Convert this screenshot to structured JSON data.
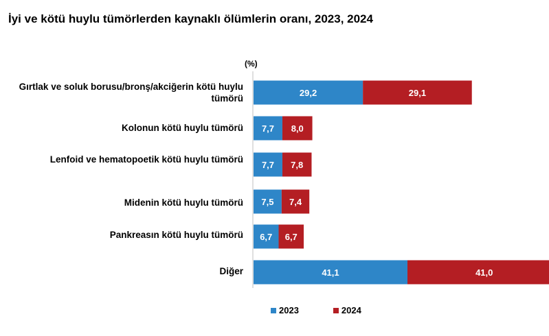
{
  "chart_data": {
    "type": "bar",
    "orientation": "horizontal",
    "stacked": true,
    "title": "İyi ve kötü huylu tümörlerden kaynaklı ölümlerin oranı, 2023, 2024",
    "unit_label": "(%)",
    "categories": [
      "Gırtlak ve soluk borusu/bronş/akciğerin kötü huylu tümörü",
      "Kolonun kötü huylu tümörü",
      "Lenfoid ve hematopoetik kötü huylu tümörü",
      "Midenin kötü huylu tümörü",
      "Pankreasın kötü huylu tümörü",
      "Diğer"
    ],
    "series": [
      {
        "name": "2023",
        "color": "#2e86c8",
        "values": [
          29.2,
          7.7,
          7.7,
          7.5,
          6.7,
          41.1
        ],
        "labels": [
          "29,2",
          "7,7",
          "7,7",
          "7,5",
          "6,7",
          "41,1"
        ]
      },
      {
        "name": "2024",
        "color": "#b41e23",
        "values": [
          29.1,
          8.0,
          7.8,
          7.4,
          6.7,
          41.0
        ],
        "labels": [
          "29,1",
          "8,0",
          "7,8",
          "7,4",
          "6,7",
          "41,0"
        ]
      }
    ],
    "legend_position": "bottom",
    "grid": false
  }
}
